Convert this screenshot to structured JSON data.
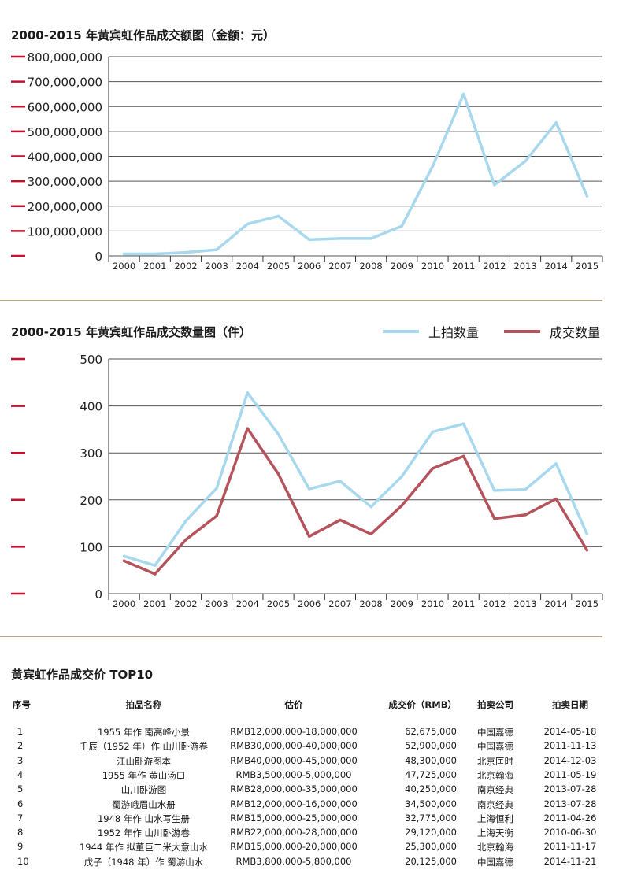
{
  "chart_data": [
    {
      "type": "line",
      "title": "2000-2015 年黄宾虹作品成交额图（金额：元）",
      "x": [
        "2000",
        "2001",
        "2002",
        "2003",
        "2004",
        "2005",
        "2006",
        "2007",
        "2008",
        "2009",
        "2010",
        "2011",
        "2012",
        "2013",
        "2014",
        "2015"
      ],
      "ylim": [
        0,
        800000000
      ],
      "yticks": [
        "0",
        "100,000,000",
        "200,000,000",
        "300,000,000",
        "400,000,000",
        "500,000,000",
        "600,000,000",
        "700,000,000",
        "800,000,000"
      ],
      "grid": true,
      "series": [
        {
          "color": "#a8d8ee",
          "values": [
            8000000,
            8000000,
            14000000,
            25000000,
            128000000,
            160000000,
            65000000,
            70000000,
            70000000,
            120000000,
            360000000,
            650000000,
            285000000,
            380000000,
            535000000,
            240000000
          ]
        }
      ]
    },
    {
      "type": "line",
      "title": "2000-2015 年黄宾虹作品成交数量图（件）",
      "x": [
        "2000",
        "2001",
        "2002",
        "2003",
        "2004",
        "2005",
        "2006",
        "2007",
        "2008",
        "2009",
        "2010",
        "2011",
        "2012",
        "2013",
        "2014",
        "2015"
      ],
      "ylim": [
        0,
        500
      ],
      "yticks": [
        "0",
        "100",
        "200",
        "300",
        "400",
        "500"
      ],
      "grid": true,
      "legend": "top-right",
      "series": [
        {
          "name": "上拍数量",
          "color": "#a8d8ee",
          "values": [
            80,
            60,
            155,
            225,
            428,
            340,
            223,
            240,
            185,
            250,
            345,
            362,
            220,
            222,
            277,
            127
          ]
        },
        {
          "name": "成交数量",
          "color": "#b5535c",
          "values": [
            70,
            42,
            115,
            166,
            352,
            255,
            122,
            157,
            127,
            188,
            267,
            293,
            160,
            168,
            202,
            93
          ]
        }
      ]
    },
    {
      "type": "table",
      "title": "黄宾虹作品成交价 TOP10",
      "columns": [
        "序号",
        "拍品名称",
        "估价",
        "成交价（RMB）",
        "拍卖公司",
        "拍卖日期"
      ],
      "rows": [
        [
          "1",
          "1955 年作 南高峰小景",
          "RMB12,000,000-18,000,000",
          "62,675,000",
          "中国嘉德",
          "2014-05-18"
        ],
        [
          "2",
          "壬辰（1952 年）作 山川卧游卷",
          "RMB30,000,000-40,000,000",
          "52,900,000",
          "中国嘉德",
          "2011-11-13"
        ],
        [
          "3",
          "江山卧游图本",
          "RMB40,000,000-45,000,000",
          "48,300,000",
          "北京匡时",
          "2014-12-03"
        ],
        [
          "4",
          "1955 年作 黄山汤口",
          "RMB3,500,000-5,000,000",
          "47,725,000",
          "北京翰海",
          "2011-05-19"
        ],
        [
          "5",
          "山川卧游图",
          "RMB28,000,000-35,000,000",
          "40,250,000",
          "南京经典",
          "2013-07-28"
        ],
        [
          "6",
          "蜀游峨眉山水册",
          "RMB12,000,000-16,000,000",
          "34,500,000",
          "南京经典",
          "2013-07-28"
        ],
        [
          "7",
          "1948 年作 山水写生册",
          "RMB15,000,000-25,000,000",
          "32,775,000",
          "上海恒利",
          "2011-04-26"
        ],
        [
          "8",
          "1952 年作 山川卧游卷",
          "RMB22,000,000-28,000,000",
          "29,120,000",
          "上海天衡",
          "2010-06-30"
        ],
        [
          "9",
          "1944 年作 拟董巨二米大意山水",
          "RMB15,000,000-20,000,000",
          "25,300,000",
          "北京翰海",
          "2011-11-17"
        ],
        [
          "10",
          "戊子（1948 年）作 蜀游山水",
          "RMB3,800,000-5,800,000",
          "20,125,000",
          "中国嘉德",
          "2014-11-21"
        ]
      ]
    }
  ]
}
